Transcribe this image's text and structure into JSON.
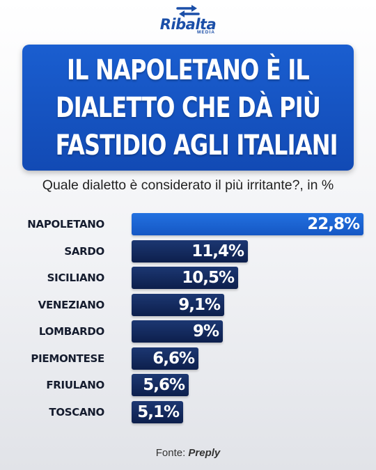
{
  "brand": {
    "name": "Ribalta",
    "sub": "MEDIA",
    "color": "#1b4fa8"
  },
  "title": {
    "lines": [
      "IL NAPOLETANO È IL",
      "DIALETTO CHE DÀ PIÙ",
      "FASTIDIO AGLI ITALIANI"
    ],
    "background": "#1558c8"
  },
  "source": {
    "label": "Fonte:",
    "name": "Preply"
  },
  "colors": {
    "highlight_bar": "#1e66d6",
    "bar": "#152a5e",
    "label_text": "#151c2e"
  },
  "chart_data": {
    "type": "bar",
    "orientation": "horizontal",
    "title": "Quale dialetto è considerato il più irritante?, in %",
    "categories": [
      "NAPOLETANO",
      "SARDO",
      "SICILIANO",
      "VENEZIANO",
      "LOMBARDO",
      "PIEMONTESE",
      "FRIULANO",
      "TOSCANO"
    ],
    "values": [
      22.8,
      11.4,
      10.5,
      9.1,
      9,
      6.6,
      5.6,
      5.1
    ],
    "value_labels": [
      "22,8%",
      "11,4%",
      "10,5%",
      "9,1%",
      "9%",
      "6,6%",
      "5,6%",
      "5,1%"
    ],
    "highlight": [
      "NAPOLETANO"
    ],
    "xlim": [
      0,
      22.8
    ],
    "grid": false,
    "legend": "none"
  }
}
